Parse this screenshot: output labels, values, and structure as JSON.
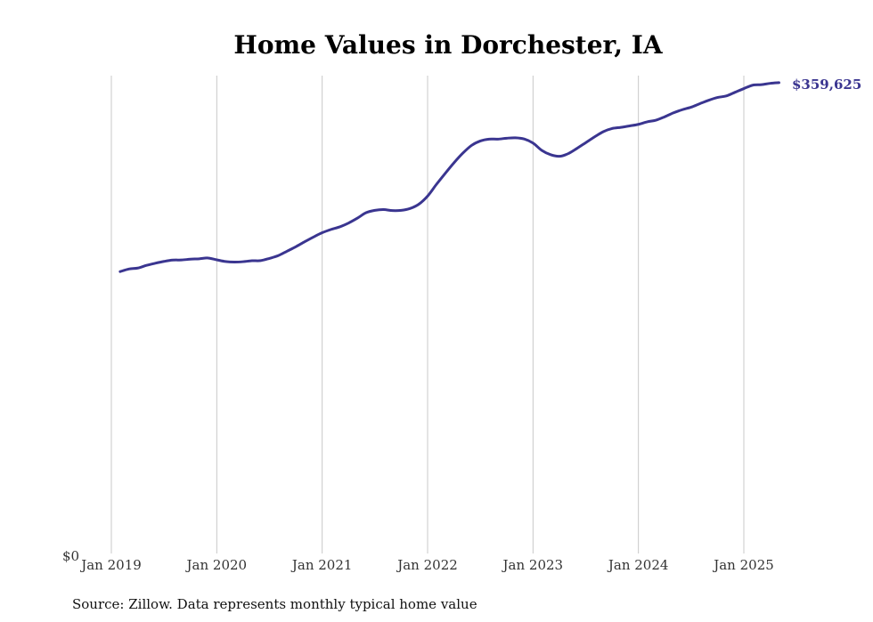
{
  "chart_data": {
    "type": "line",
    "title": "Home Values in Dorchester, IA",
    "source": "Source: Zillow. Data represents monthly typical home value",
    "y_zero_label": "$0",
    "end_label": "$359,625",
    "ylim": [
      0,
      365000
    ],
    "xlim": [
      "2018-11",
      "2025-06"
    ],
    "grid": "vertical",
    "legend": "none",
    "line_color": "#3a3590",
    "x_ticks": [
      {
        "date": "2019-01",
        "label": "Jan 2019"
      },
      {
        "date": "2020-01",
        "label": "Jan 2020"
      },
      {
        "date": "2021-01",
        "label": "Jan 2021"
      },
      {
        "date": "2022-01",
        "label": "Jan 2022"
      },
      {
        "date": "2023-01",
        "label": "Jan 2023"
      },
      {
        "date": "2024-01",
        "label": "Jan 2024"
      },
      {
        "date": "2025-01",
        "label": "Jan 2025"
      }
    ],
    "x": [
      "2019-02",
      "2019-03",
      "2019-04",
      "2019-05",
      "2019-06",
      "2019-07",
      "2019-08",
      "2019-09",
      "2019-10",
      "2019-11",
      "2019-12",
      "2020-01",
      "2020-02",
      "2020-03",
      "2020-04",
      "2020-05",
      "2020-06",
      "2020-07",
      "2020-08",
      "2020-09",
      "2020-10",
      "2020-11",
      "2020-12",
      "2021-01",
      "2021-02",
      "2021-03",
      "2021-04",
      "2021-05",
      "2021-06",
      "2021-07",
      "2021-08",
      "2021-09",
      "2021-10",
      "2021-11",
      "2021-12",
      "2022-01",
      "2022-02",
      "2022-03",
      "2022-04",
      "2022-05",
      "2022-06",
      "2022-07",
      "2022-08",
      "2022-09",
      "2022-10",
      "2022-11",
      "2022-12",
      "2023-01",
      "2023-02",
      "2023-03",
      "2023-04",
      "2023-05",
      "2023-06",
      "2023-07",
      "2023-08",
      "2023-09",
      "2023-10",
      "2023-11",
      "2023-12",
      "2024-01",
      "2024-02",
      "2024-03",
      "2024-04",
      "2024-05",
      "2024-06",
      "2024-07",
      "2024-08",
      "2024-09",
      "2024-10",
      "2024-11",
      "2024-12",
      "2025-01",
      "2025-02",
      "2025-03",
      "2025-04",
      "2025-05"
    ],
    "values": [
      215300,
      217300,
      218000,
      220100,
      221700,
      223100,
      224100,
      224200,
      224800,
      225100,
      225700,
      224300,
      223000,
      222600,
      222900,
      223600,
      223700,
      225400,
      227500,
      230900,
      234300,
      238100,
      241700,
      245000,
      247500,
      249500,
      252400,
      256100,
      260300,
      262100,
      262700,
      261900,
      262100,
      263500,
      266800,
      273000,
      281900,
      290300,
      298400,
      305700,
      311700,
      315100,
      316500,
      316500,
      317200,
      317500,
      316600,
      313500,
      307900,
      304600,
      303400,
      305400,
      309400,
      313800,
      318200,
      322200,
      324600,
      325500,
      326600,
      327800,
      329700,
      331000,
      333600,
      336600,
      339000,
      340900,
      343600,
      346200,
      348300,
      349500,
      352300,
      355100,
      357700,
      358100,
      359100,
      359625
    ]
  }
}
